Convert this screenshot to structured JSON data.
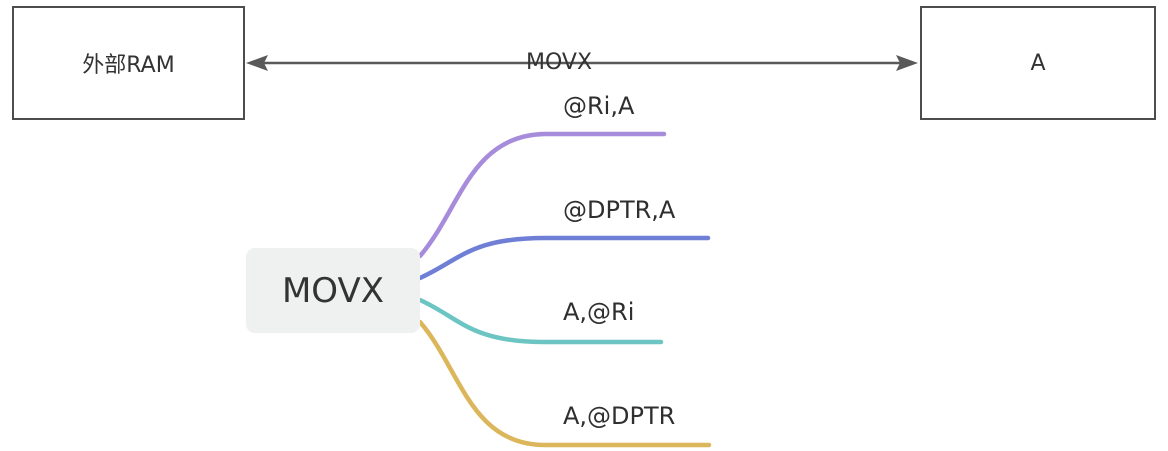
{
  "left_box": {
    "label": "外部RAM"
  },
  "right_box": {
    "label": "A"
  },
  "connector": {
    "label": "MOVX"
  },
  "root": {
    "label": "MOVX"
  },
  "branches": [
    {
      "label": "@Ri,A",
      "color": "#a68cdb"
    },
    {
      "label": "@DPTR,A",
      "color": "#6f7fd6"
    },
    {
      "label": "A,@Ri",
      "color": "#6cc5c2"
    },
    {
      "label": "A,@DPTR",
      "color": "#dcb65a"
    }
  ],
  "colors": {
    "box_border": "#4d4d4d",
    "arrow": "#595959",
    "root_fill": "#eff1f0",
    "text": "#333333"
  }
}
